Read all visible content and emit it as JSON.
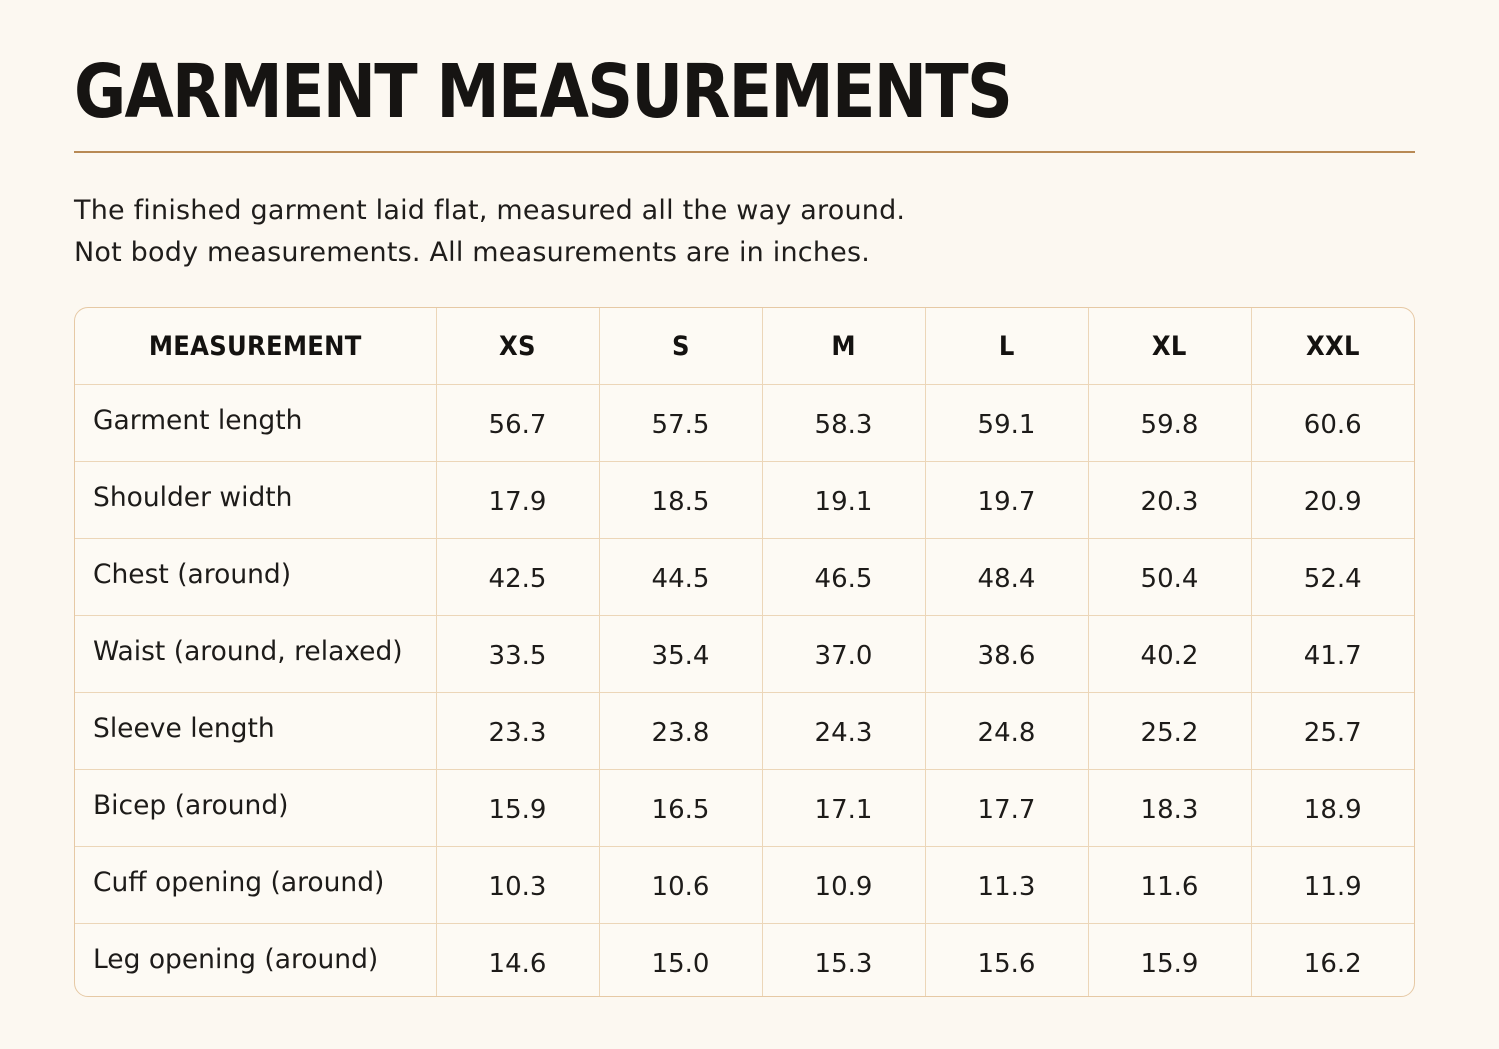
{
  "title": "GARMENT MEASUREMENTS",
  "description": {
    "line1": "The finished garment laid flat, measured all the way around.",
    "line2": "Not body measurements. All measurements are in inches."
  },
  "table": {
    "headers": [
      "MEASUREMENT",
      "XS",
      "S",
      "M",
      "L",
      "XL",
      "XXL"
    ],
    "rows": [
      {
        "label": "Garment length",
        "values": [
          "56.7",
          "57.5",
          "58.3",
          "59.1",
          "59.8",
          "60.6"
        ]
      },
      {
        "label": "Shoulder width",
        "values": [
          "17.9",
          "18.5",
          "19.1",
          "19.7",
          "20.3",
          "20.9"
        ]
      },
      {
        "label": "Chest (around)",
        "values": [
          "42.5",
          "44.5",
          "46.5",
          "48.4",
          "50.4",
          "52.4"
        ]
      },
      {
        "label": "Waist (around, relaxed)",
        "values": [
          "33.5",
          "35.4",
          "37.0",
          "38.6",
          "40.2",
          "41.7"
        ]
      },
      {
        "label": "Sleeve length",
        "values": [
          "23.3",
          "23.8",
          "24.3",
          "24.8",
          "25.2",
          "25.7"
        ]
      },
      {
        "label": "Bicep (around)",
        "values": [
          "15.9",
          "16.5",
          "17.1",
          "17.7",
          "18.3",
          "18.9"
        ]
      },
      {
        "label": "Cuff opening (around)",
        "values": [
          "10.3",
          "10.6",
          "10.9",
          "11.3",
          "11.6",
          "11.9"
        ]
      },
      {
        "label": "Leg opening (around)",
        "values": [
          "14.6",
          "15.0",
          "15.3",
          "15.6",
          "15.9",
          "16.2"
        ]
      }
    ]
  },
  "colors": {
    "background": "#fcf8f1",
    "rule": "#b88a55",
    "table_border": "#e6c9a5"
  }
}
